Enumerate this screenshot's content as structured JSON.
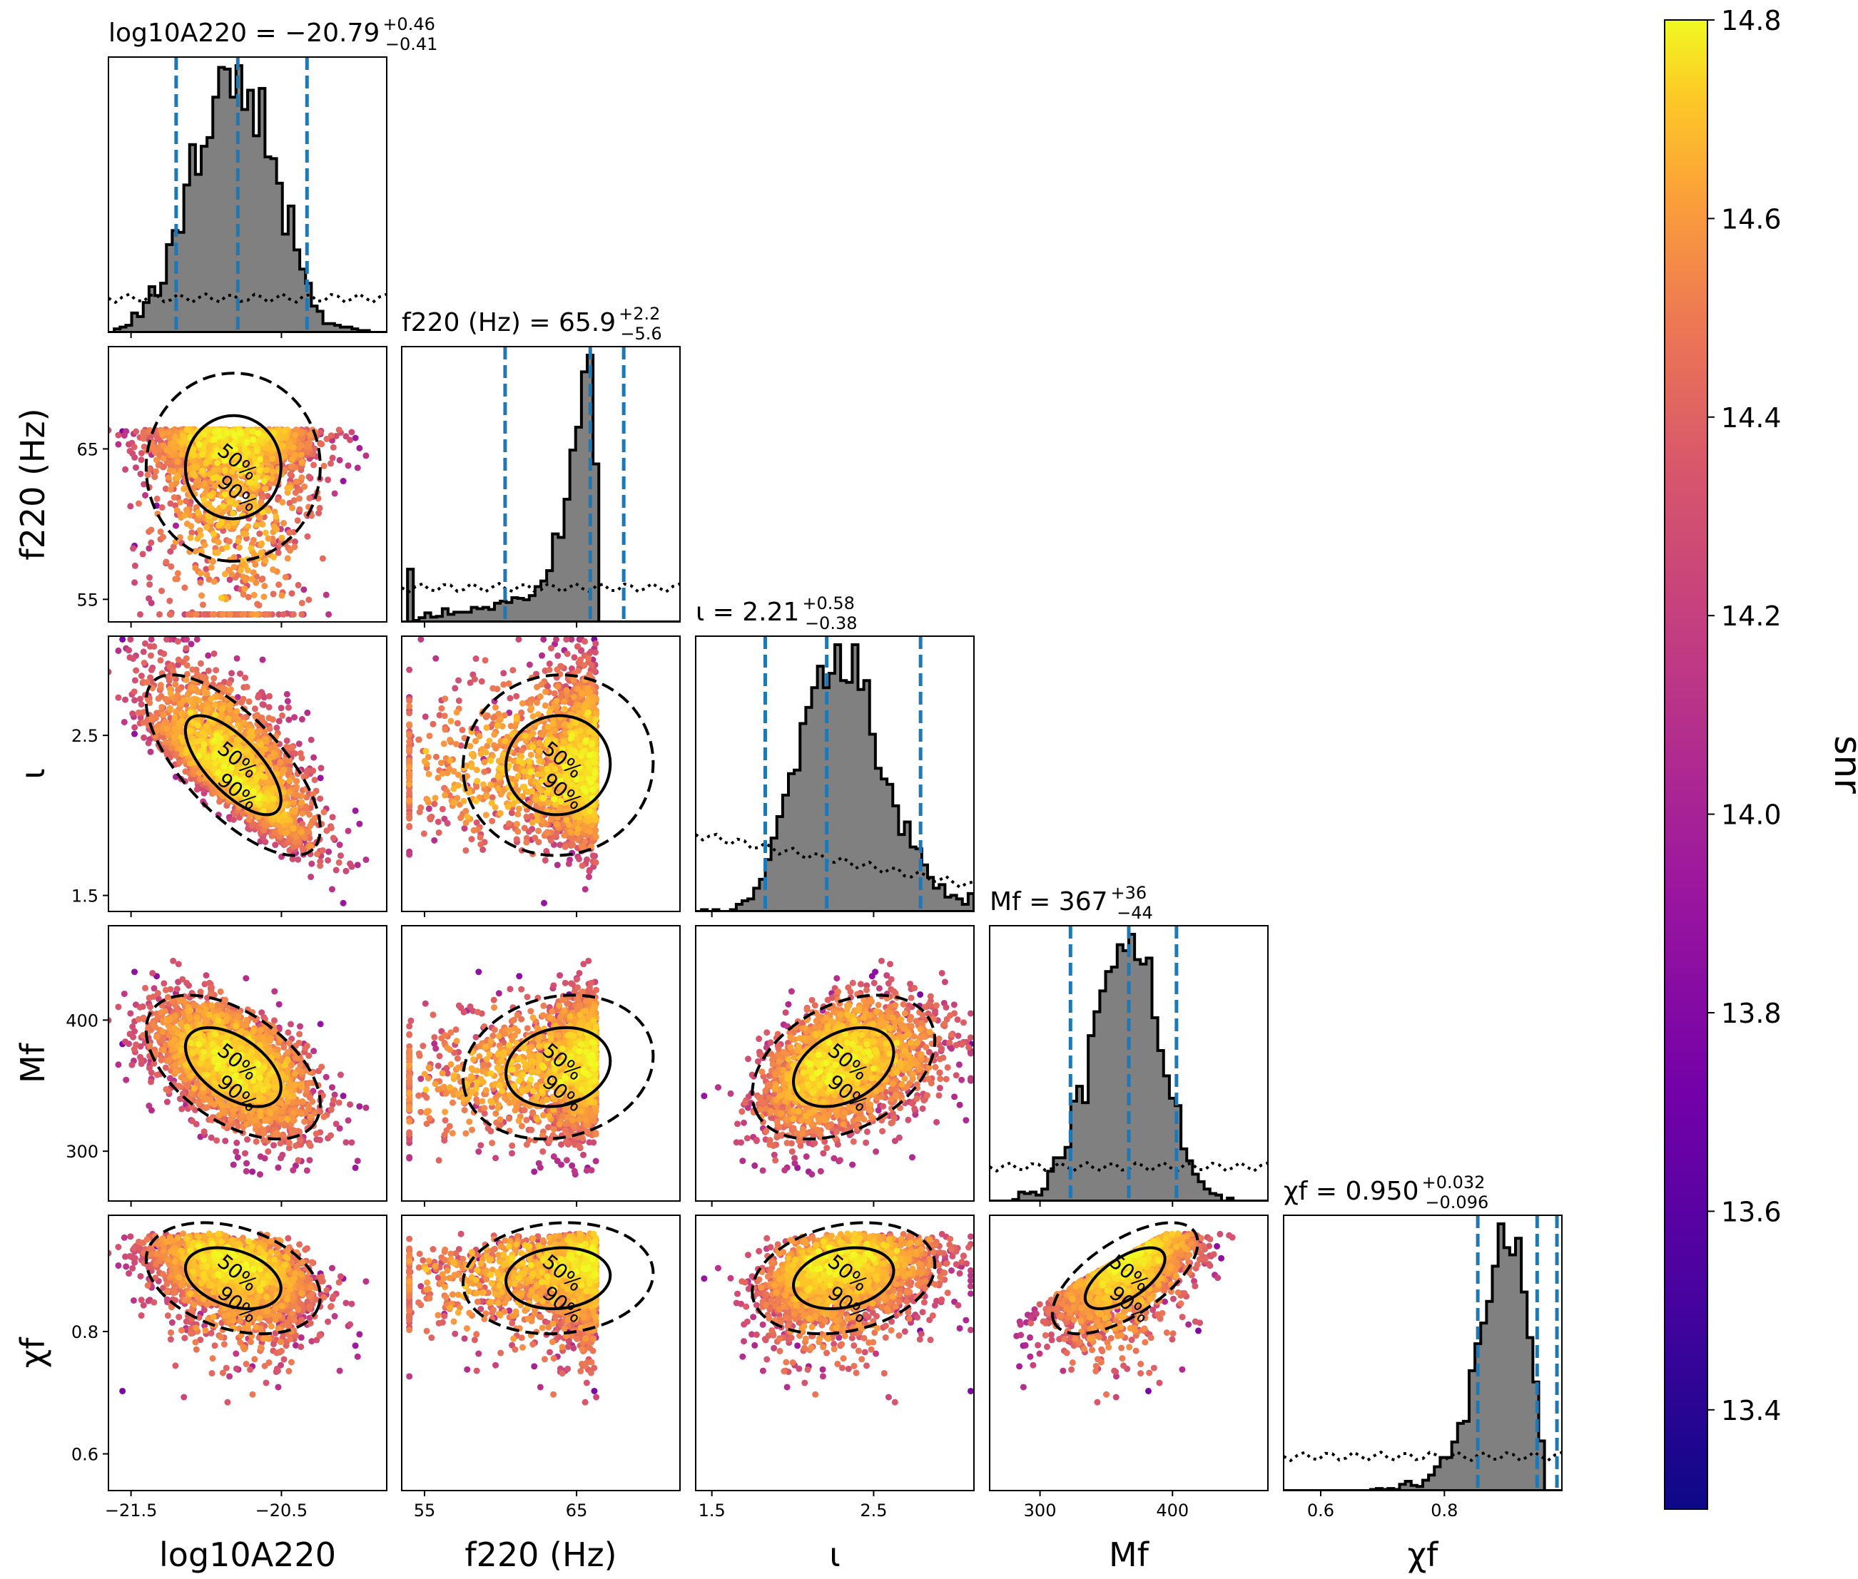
{
  "chart_data": {
    "type": "scatter",
    "kind": "corner_plot",
    "params": [
      {
        "key": "logA",
        "axis_label": "log10A220",
        "range": [
          -21.65,
          -19.8
        ],
        "ticks": [
          -21.5,
          -20.5
        ],
        "tick_labels": [
          "−21.5",
          "−20.5"
        ],
        "annotation": {
          "prefix": "log10A220 = ",
          "value": "−20.79",
          "upper": "+0.46",
          "lower": "−0.41"
        },
        "median": -20.79,
        "lower": -21.2,
        "upper": -20.33
      },
      {
        "key": "f220",
        "axis_label": "f220 (Hz)",
        "range": [
          53.5,
          71.8
        ],
        "ticks": [
          55,
          65
        ],
        "tick_labels": [
          "55",
          "65"
        ],
        "annotation": {
          "prefix": "f220 (Hz) = ",
          "value": "65.9",
          "upper": "+2.2",
          "lower": "−5.6"
        },
        "median": 65.9,
        "lower": 60.3,
        "upper": 68.1
      },
      {
        "key": "iota",
        "axis_label": "ι",
        "range": [
          1.4,
          3.12
        ],
        "ticks": [
          1.5,
          2.5
        ],
        "tick_labels": [
          "1.5",
          "2.5"
        ],
        "annotation": {
          "prefix": "ι = ",
          "value": "2.21",
          "upper": "+0.58",
          "lower": "−0.38"
        },
        "median": 2.21,
        "lower": 1.83,
        "upper": 2.79
      },
      {
        "key": "Mf",
        "axis_label": "Mf",
        "range": [
          262,
          472
        ],
        "ticks": [
          300,
          400
        ],
        "tick_labels": [
          "300",
          "400"
        ],
        "annotation": {
          "prefix": "Mf = ",
          "value": "367",
          "upper": "+36",
          "lower": "−44"
        },
        "median": 367,
        "lower": 323,
        "upper": 403
      },
      {
        "key": "chif",
        "axis_label": "χf",
        "range": [
          0.54,
          0.99
        ],
        "ticks": [
          0.6,
          0.8
        ],
        "tick_labels": [
          "0.6",
          "0.8"
        ],
        "annotation": {
          "prefix": "χf = ",
          "value": "0.950",
          "upper": "+0.032",
          "lower": "−0.096"
        },
        "median": 0.95,
        "lower": 0.854,
        "upper": 0.982
      }
    ],
    "colorbar": {
      "label": "snr",
      "range": [
        13.3,
        14.8
      ],
      "ticks": [
        13.4,
        13.6,
        13.8,
        14.0,
        14.2,
        14.4,
        14.6,
        14.8
      ],
      "tick_labels": [
        "13.4",
        "13.6",
        "13.8",
        "14.0",
        "14.2",
        "14.4",
        "14.6",
        "14.8"
      ],
      "colormap": "plasma"
    },
    "contour_labels": [
      "50%",
      "90%"
    ],
    "colors": {
      "histogram_fill": "#808080",
      "credible_lines": "#1f77b4",
      "contours": "#000000",
      "prior": "#000000"
    }
  }
}
